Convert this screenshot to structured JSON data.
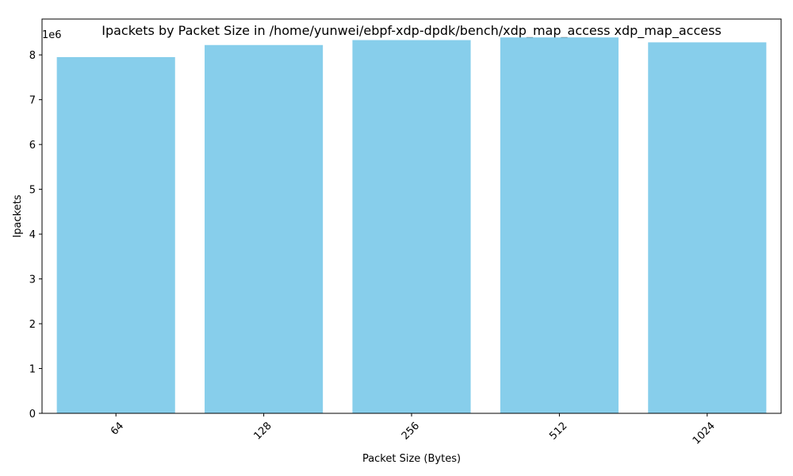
{
  "colors": {
    "bar": "#87CEEB",
    "axis": "#000000",
    "background": "#ffffff"
  },
  "chart_data": {
    "type": "bar",
    "title": "Ipackets by Packet Size in /home/yunwei/ebpf-xdp-dpdk/bench/xdp_map_access xdp_map_access",
    "xlabel": "Packet Size (Bytes)",
    "ylabel": "Ipackets",
    "y_offset_label": "1e6",
    "categories": [
      "64",
      "128",
      "256",
      "512",
      "1024"
    ],
    "values": [
      7950000,
      8220000,
      8330000,
      8390000,
      8280000
    ],
    "ylim": [
      0,
      8800000
    ],
    "yticks": [
      0,
      1000000,
      2000000,
      3000000,
      4000000,
      5000000,
      6000000,
      7000000,
      8000000
    ],
    "ytick_labels": [
      "0",
      "1",
      "2",
      "3",
      "4",
      "5",
      "6",
      "7",
      "8"
    ],
    "xtick_rotation_deg": 45,
    "grid": false,
    "legend": "none"
  }
}
